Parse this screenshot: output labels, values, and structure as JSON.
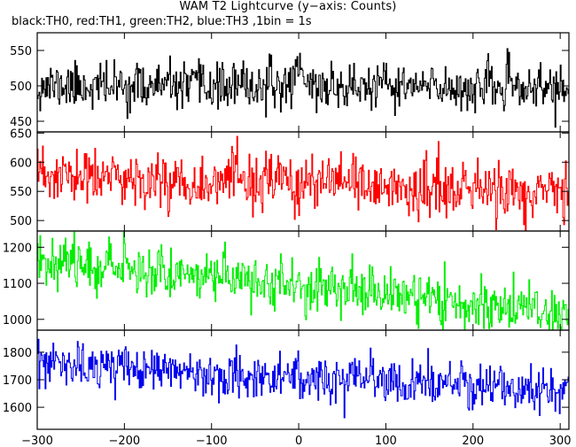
{
  "title": "WAM T2 Lightcurve (y−axis: Counts)",
  "subtitle": "black:TH0, red:TH1, green:TH2, blue:TH3 ,1bin = 1s",
  "chart_data": {
    "type": "line",
    "x": {
      "min": -300,
      "max": 310,
      "step": 1,
      "ticks": [
        -300,
        -200,
        -100,
        0,
        100,
        200,
        300
      ],
      "tick_labels": [
        "−300",
        "−200",
        "−100",
        "0",
        "100",
        "200",
        "300"
      ]
    },
    "panels": [
      {
        "name": "TH0",
        "color": "#000000",
        "ylim": [
          435,
          575
        ],
        "yticks": [
          450,
          500,
          550
        ],
        "ytick_labels": [
          "450",
          "500",
          "550"
        ],
        "trend": [
          [
            -300,
            500
          ],
          [
            310,
            497
          ]
        ],
        "noise_sd": 16,
        "seed": 11,
        "bursts": [
          {
            "x": 0,
            "width": 6,
            "amp": 30
          }
        ]
      },
      {
        "name": "TH1",
        "color": "#ff0000",
        "ylim": [
          482,
          652
        ],
        "yticks": [
          500,
          550,
          600,
          650
        ],
        "ytick_labels": [
          "500",
          "550",
          "600",
          "650"
        ],
        "trend": [
          [
            -300,
            575
          ],
          [
            0,
            563
          ],
          [
            310,
            545
          ]
        ],
        "noise_sd": 24,
        "seed": 23,
        "bursts": []
      },
      {
        "name": "TH2",
        "color": "#00ee00",
        "ylim": [
          970,
          1245
        ],
        "yticks": [
          1000,
          1100,
          1200
        ],
        "ytick_labels": [
          "1000",
          "1100",
          "1200"
        ],
        "trend": [
          [
            -300,
            1170
          ],
          [
            -100,
            1120
          ],
          [
            100,
            1070
          ],
          [
            310,
            1015
          ]
        ],
        "noise_sd": 35,
        "seed": 37,
        "bursts": []
      },
      {
        "name": "TH3",
        "color": "#0000ee",
        "ylim": [
          1520,
          1880
        ],
        "yticks": [
          1600,
          1700,
          1800
        ],
        "ytick_labels": [
          "1600",
          "1700",
          "1800"
        ],
        "trend": [
          [
            -300,
            1755
          ],
          [
            -100,
            1725
          ],
          [
            100,
            1690
          ],
          [
            310,
            1660
          ]
        ],
        "noise_sd": 40,
        "seed": 53,
        "bursts": []
      }
    ]
  }
}
